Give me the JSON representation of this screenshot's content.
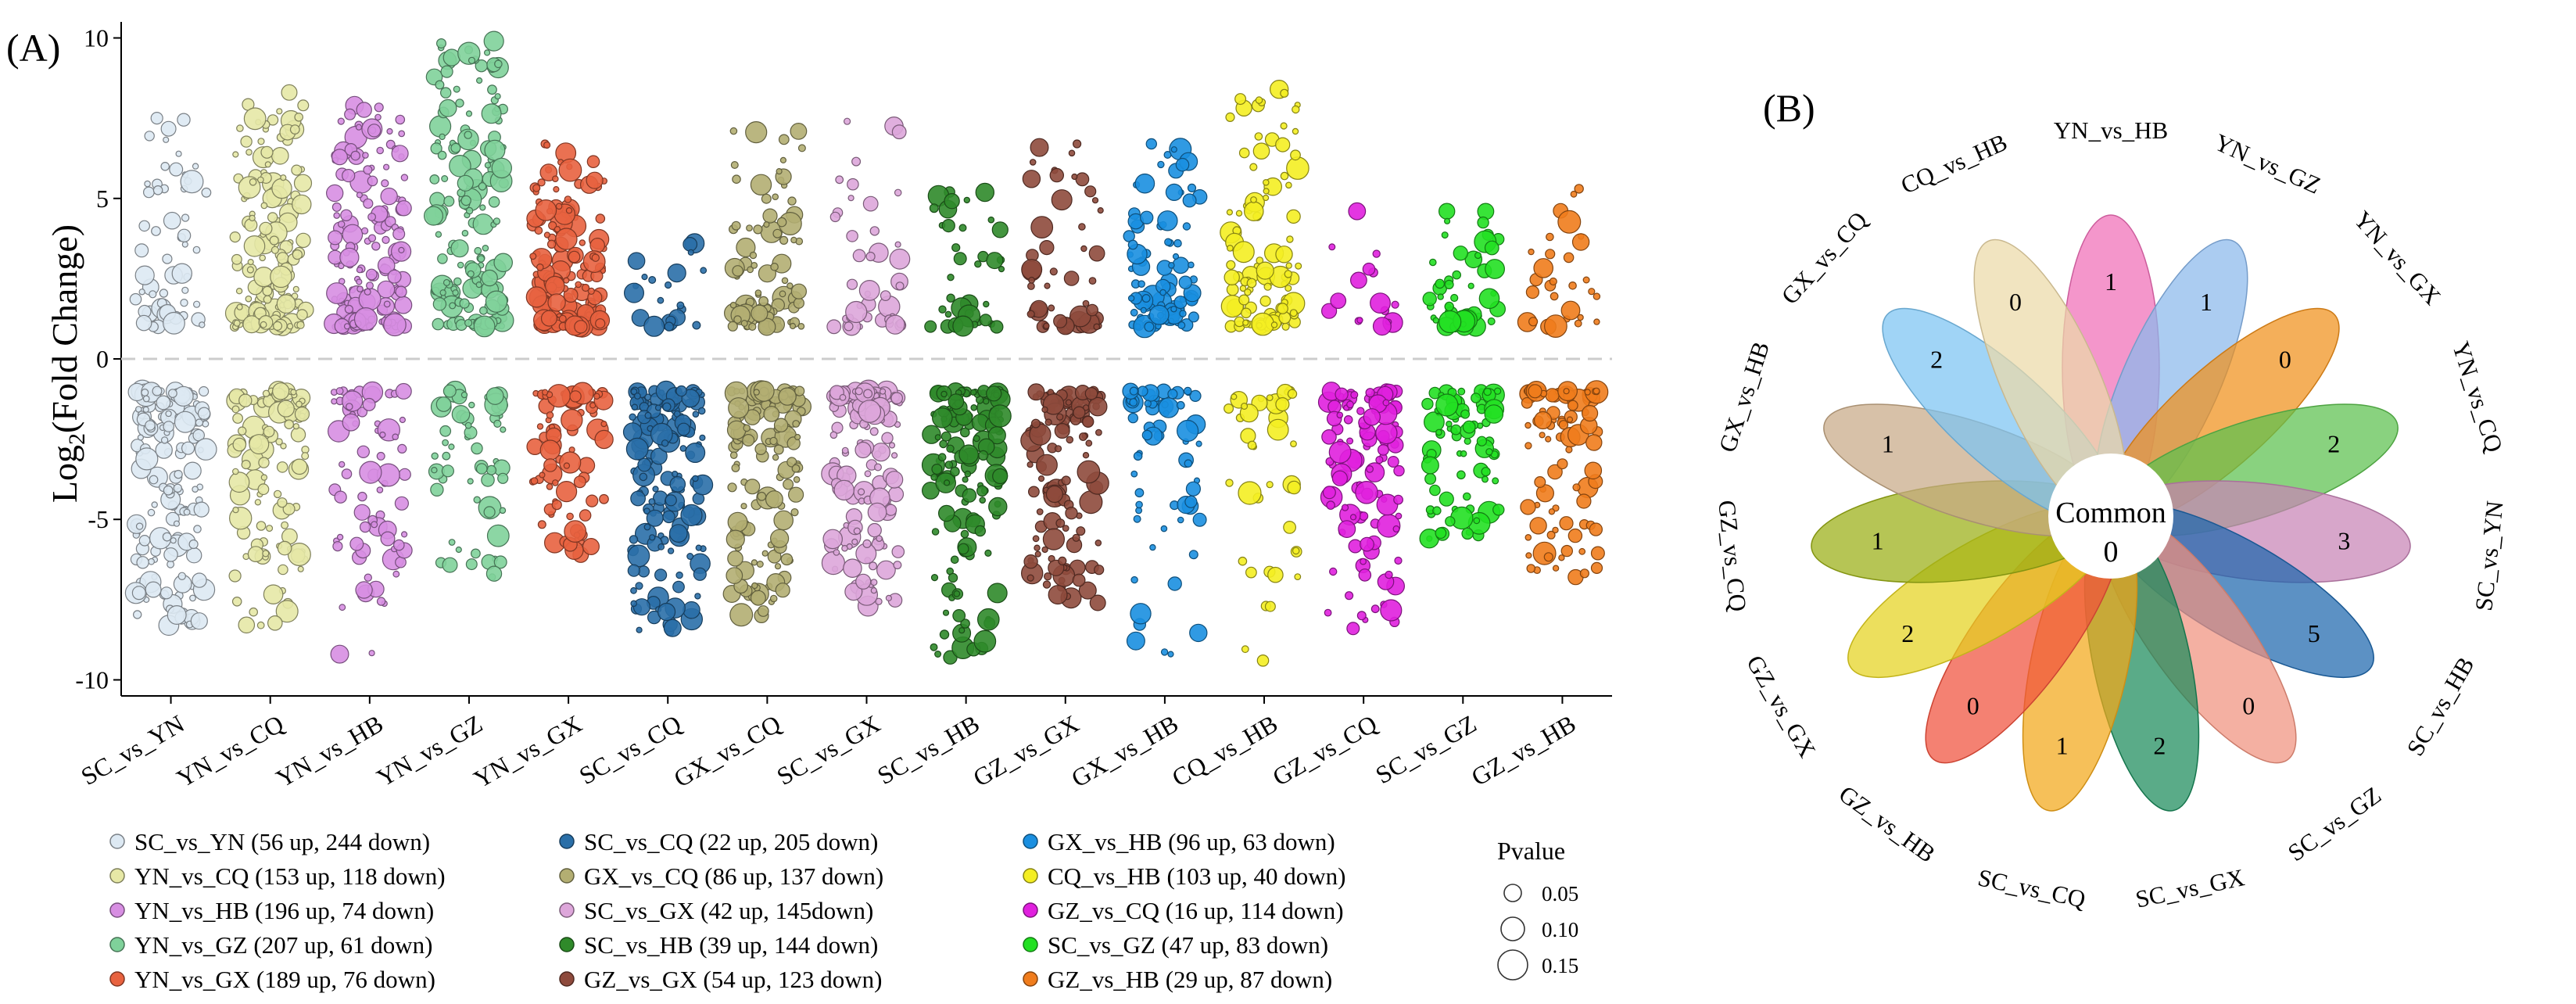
{
  "panel_a": {
    "label": "(A)",
    "chart_data": {
      "type": "scatter",
      "title": "",
      "xlabel": "",
      "ylabel_main": "Log",
      "ylabel_sub": "2",
      "ylabel_rest": "(Fold Change)",
      "ylim": [
        -10.5,
        10.5
      ],
      "yticks": [
        -10,
        -5,
        0,
        5,
        10
      ],
      "threshold_line": 0,
      "categories": [
        "SC_vs_YN",
        "YN_vs_CQ",
        "YN_vs_HB",
        "YN_vs_GZ",
        "YN_vs_GX",
        "SC_vs_CQ",
        "GX_vs_CQ",
        "SC_vs_GX",
        "SC_vs_HB",
        "GZ_vs_GX",
        "GX_vs_HB",
        "CQ_vs_HB",
        "GZ_vs_CQ",
        "SC_vs_GZ",
        "GZ_vs_HB"
      ],
      "series": [
        {
          "name": "SC_vs_YN",
          "legend": "SC_vs_YN (56 up, 244 down)",
          "color": "#dde9f3",
          "up": 56,
          "down": 244,
          "up_max": 7.5,
          "down_min": -8.3
        },
        {
          "name": "YN_vs_CQ",
          "legend": "YN_vs_CQ (153 up, 118 down)",
          "color": "#e6e8a6",
          "up": 153,
          "down": 118,
          "up_max": 8.3,
          "down_min": -8.3
        },
        {
          "name": "YN_vs_HB",
          "legend": "YN_vs_HB (196 up, 74 down)",
          "color": "#d78ee2",
          "up": 196,
          "down": 74,
          "up_max": 7.9,
          "down_min": -9.2
        },
        {
          "name": "YN_vs_GZ",
          "legend": "YN_vs_GZ (207 up, 61 down)",
          "color": "#7fd19a",
          "up": 207,
          "down": 61,
          "up_max": 9.9,
          "down_min": -6.8
        },
        {
          "name": "YN_vs_GX",
          "legend": "YN_vs_GX (189 up, 76 down)",
          "color": "#e8623f",
          "up": 189,
          "down": 76,
          "up_max": 6.7,
          "down_min": -6.1
        },
        {
          "name": "SC_vs_CQ",
          "legend": "SC_vs_CQ (22 up, 205 down)",
          "color": "#2a6fa8",
          "up": 22,
          "down": 205,
          "up_max": 3.6,
          "down_min": -8.5
        },
        {
          "name": "GX_vs_CQ",
          "legend": "GX_vs_CQ (86 up, 137 down)",
          "color": "#b3ae72",
          "up": 86,
          "down": 137,
          "up_max": 7.1,
          "down_min": -8.0
        },
        {
          "name": "SC_vs_GX",
          "legend": "SC_vs_GX (42 up, 145down)",
          "color": "#dda6da",
          "up": 42,
          "down": 145,
          "up_max": 7.4,
          "down_min": -7.7
        },
        {
          "name": "SC_vs_HB",
          "legend": "SC_vs_HB (39 up, 144 down)",
          "color": "#2f8a2a",
          "up": 39,
          "down": 144,
          "up_max": 5.2,
          "down_min": -9.3
        },
        {
          "name": "GZ_vs_GX",
          "legend": "GZ_vs_GX (54 up, 123 down)",
          "color": "#8e4a3c",
          "up": 54,
          "down": 123,
          "up_max": 6.7,
          "down_min": -7.6
        },
        {
          "name": "GX_vs_HB",
          "legend": "GX_vs_HB (96 up, 63 down)",
          "color": "#1a8fe0",
          "up": 96,
          "down": 63,
          "up_max": 6.7,
          "down_min": -9.2
        },
        {
          "name": "CQ_vs_HB",
          "legend": "CQ_vs_HB (103 up, 40 down)",
          "color": "#f4ee22",
          "up": 103,
          "down": 40,
          "up_max": 8.4,
          "down_min": -9.4
        },
        {
          "name": "GZ_vs_CQ",
          "legend": "GZ_vs_CQ (16 up, 114 down)",
          "color": "#e020de",
          "up": 16,
          "down": 114,
          "up_max": 4.6,
          "down_min": -8.4
        },
        {
          "name": "SC_vs_GZ",
          "legend": "SC_vs_GZ (47 up, 83 down)",
          "color": "#22e022",
          "up": 47,
          "down": 83,
          "up_max": 4.6,
          "down_min": -5.6
        },
        {
          "name": "GZ_vs_HB",
          "legend": "GZ_vs_HB (29 up, 87 down)",
          "color": "#f07c1c",
          "up": 29,
          "down": 87,
          "up_max": 5.3,
          "down_min": -6.8
        }
      ],
      "size_legend": {
        "title": "Pvalue",
        "entries": [
          {
            "label": "0.05",
            "value": 0.05
          },
          {
            "label": "0.10",
            "value": 0.1
          },
          {
            "label": "0.15",
            "value": 0.15
          }
        ]
      }
    }
  },
  "panel_b": {
    "label": "(B)",
    "center_label": "Common",
    "center_value": "0",
    "petals": [
      {
        "name": "YN_vs_HB",
        "value": "1",
        "color": "#f06db7"
      },
      {
        "name": "YN_vs_GZ",
        "value": "1",
        "color": "#8ab8ec"
      },
      {
        "name": "YN_vs_GX",
        "value": "0",
        "color": "#f0901a"
      },
      {
        "name": "YN_vs_CQ",
        "value": "2",
        "color": "#5cc04e"
      },
      {
        "name": "SC_vs_YN",
        "value": "3",
        "color": "#c784b6"
      },
      {
        "name": "SC_vs_HB",
        "value": "5",
        "color": "#1d67ad"
      },
      {
        "name": "SC_vs_GZ",
        "value": "0",
        "color": "#f0927e"
      },
      {
        "name": "SC_vs_GX",
        "value": "2",
        "color": "#1a8a5a"
      },
      {
        "name": "SC_vs_CQ",
        "value": "1",
        "color": "#f2a719"
      },
      {
        "name": "GZ_vs_HB",
        "value": "0",
        "color": "#f0503c"
      },
      {
        "name": "GZ_vs_GX",
        "value": "2",
        "color": "#e4d21e"
      },
      {
        "name": "GZ_vs_CQ",
        "value": "1",
        "color": "#9aae14"
      },
      {
        "name": "GX_vs_HB",
        "value": "1",
        "color": "#c7a986"
      },
      {
        "name": "GX_vs_CQ",
        "value": "2",
        "color": "#7cc4f2"
      },
      {
        "name": "CQ_vs_HB",
        "value": "0",
        "color": "#ecd9a8"
      }
    ]
  }
}
